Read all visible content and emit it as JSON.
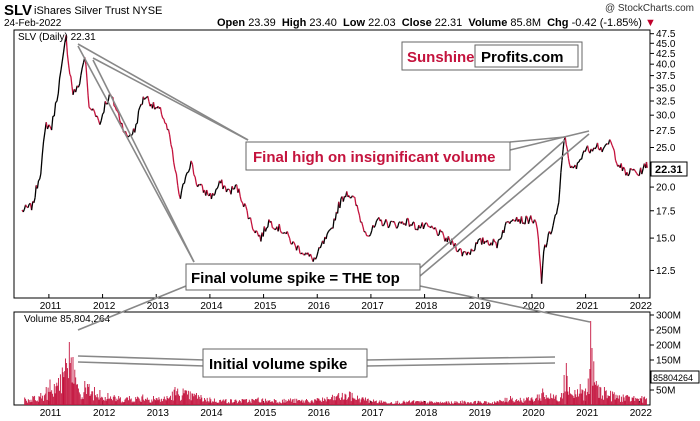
{
  "header": {
    "ticker": "SLV",
    "name": "iShares Silver Trust",
    "exchange": "NYSE",
    "date": "24-Feb-2022",
    "open_label": "Open",
    "open": "23.39",
    "high_label": "High",
    "high": "23.40",
    "low_label": "Low",
    "low": "22.03",
    "close_label": "Close",
    "close": "22.31",
    "volume_label": "Volume",
    "volume": "85.8M",
    "chg_label": "Chg",
    "chg": "-0.42 (-1.85%)",
    "chg_arrow": "▼",
    "copyright": "@ StockCharts.com"
  },
  "price_panel": {
    "legend": "SLV (Daily) 22.31",
    "last_price_tag": "22.31"
  },
  "volume_panel": {
    "legend": "Volume 85,804,264",
    "last_volume_tag": "85804264"
  },
  "brand": {
    "part1": "Sunshine",
    "part2": "Profits.com",
    "part1_color": "#c4133d"
  },
  "annotations": {
    "final_high": "Final high on insignificant volume",
    "final_spike": "Final volume spike = THE top",
    "initial_spike": "Initial volume spike"
  },
  "colors": {
    "up": "#000000",
    "down": "#c4133d",
    "volume_fill": "#c4133d",
    "accent": "#c4133d"
  },
  "chart_data": [
    {
      "type": "line",
      "title": "SLV (Daily) 22.31",
      "x_ticks": [
        "2011",
        "2012",
        "2013",
        "2014",
        "2015",
        "2016",
        "2017",
        "2018",
        "2019",
        "2020",
        "2021",
        "2022"
      ],
      "y_ticks": [
        12.5,
        15.0,
        17.5,
        20.0,
        22.5,
        25.0,
        27.5,
        30.0,
        32.5,
        35.0,
        37.5,
        40.0,
        42.5,
        45.0,
        47.5
      ],
      "ylim": [
        10.7,
        48.5
      ],
      "y_scale": "log",
      "grid": false,
      "series": [
        {
          "x": [
            2010.5,
            2010.7,
            2010.85,
            2010.95,
            2011.05,
            2011.15,
            2011.25,
            2011.32,
            2011.37,
            2011.45,
            2011.55,
            2011.62,
            2011.67,
            2011.75,
            2011.85,
            2011.95,
            2012.05,
            2012.15,
            2012.3,
            2012.45,
            2012.6,
            2012.72,
            2012.8,
            2012.95,
            2013.1,
            2013.25,
            2013.35,
            2013.45,
            2013.55,
            2013.65,
            2013.75,
            2013.9,
            2014.05,
            2014.2,
            2014.35,
            2014.5,
            2014.65,
            2014.8,
            2014.95,
            2015.1,
            2015.25,
            2015.4,
            2015.55,
            2015.7,
            2015.85,
            2015.97,
            2016.1,
            2016.25,
            2016.4,
            2016.55,
            2016.7,
            2016.85,
            2016.97,
            2017.15,
            2017.3,
            2017.5,
            2017.65,
            2017.85,
            2018.0,
            2018.2,
            2018.4,
            2018.55,
            2018.7,
            2018.85,
            2019.0,
            2019.15,
            2019.35,
            2019.5,
            2019.65,
            2019.85,
            2020.0,
            2020.1,
            2020.18,
            2020.22,
            2020.35,
            2020.5,
            2020.56,
            2020.6,
            2020.66,
            2020.72,
            2020.85,
            2020.95,
            2021.08,
            2021.2,
            2021.35,
            2021.45,
            2021.6,
            2021.75,
            2021.9,
            2022.0,
            2022.12,
            2022.15
          ],
          "values": [
            17.5,
            18.0,
            22.0,
            28.5,
            28.0,
            33.0,
            40.0,
            46.5,
            40.0,
            34.0,
            35.0,
            39.0,
            42.0,
            31.0,
            31.0,
            28.5,
            32.0,
            33.5,
            30.0,
            26.5,
            27.5,
            32.0,
            33.5,
            31.5,
            30.5,
            26.5,
            22.0,
            18.5,
            21.5,
            23.0,
            20.5,
            19.5,
            19.0,
            20.5,
            19.5,
            20.0,
            18.0,
            16.0,
            15.0,
            16.5,
            16.0,
            15.5,
            14.5,
            14.0,
            13.5,
            13.3,
            14.5,
            15.5,
            18.0,
            19.5,
            18.5,
            16.0,
            15.3,
            16.5,
            16.3,
            16.2,
            16.5,
            16.0,
            16.0,
            15.7,
            14.9,
            14.5,
            13.8,
            13.9,
            14.6,
            14.8,
            14.5,
            16.0,
            17.0,
            16.5,
            16.8,
            15.8,
            11.5,
            14.0,
            15.5,
            18.0,
            23.0,
            26.5,
            25.0,
            22.0,
            22.5,
            24.5,
            24.8,
            25.5,
            24.5,
            26.0,
            23.0,
            21.5,
            22.0,
            21.5,
            22.8,
            22.3
          ]
        }
      ]
    },
    {
      "type": "bar",
      "title": "Volume 85,804,264",
      "x_ticks": [
        "2011",
        "2012",
        "2013",
        "2014",
        "2015",
        "2016",
        "2017",
        "2018",
        "2019",
        "2020",
        "2021",
        "2022"
      ],
      "y_ticks": [
        "50M",
        "100M",
        "150M",
        "200M",
        "250M",
        "300M"
      ],
      "ylim": [
        0,
        310
      ],
      "units": "M shares",
      "grid": false,
      "series": [
        {
          "x": [
            2010.55,
            2010.7,
            2010.85,
            2010.95,
            2011.02,
            2011.1,
            2011.18,
            2011.25,
            2011.31,
            2011.33,
            2011.38,
            2011.45,
            2011.55,
            2011.67,
            2011.75,
            2011.85,
            2011.95,
            2012.1,
            2012.3,
            2012.5,
            2012.75,
            2012.95,
            2013.2,
            2013.35,
            2013.5,
            2013.75,
            2014.0,
            2014.3,
            2014.6,
            2014.9,
            2015.2,
            2015.5,
            2015.8,
            2016.1,
            2016.4,
            2016.6,
            2016.9,
            2017.2,
            2017.5,
            2017.8,
            2018.1,
            2018.4,
            2018.7,
            2019.0,
            2019.3,
            2019.6,
            2019.9,
            2020.1,
            2020.2,
            2020.4,
            2020.55,
            2020.6,
            2020.64,
            2020.7,
            2020.8,
            2020.9,
            2021.0,
            2021.08,
            2021.095,
            2021.12,
            2021.2,
            2021.35,
            2021.5,
            2021.7,
            2021.9,
            2022.05,
            2022.15
          ],
          "values": [
            25,
            30,
            40,
            60,
            85,
            70,
            90,
            125,
            155,
            140,
            210,
            160,
            55,
            80,
            70,
            60,
            50,
            40,
            30,
            30,
            35,
            30,
            30,
            60,
            55,
            40,
            25,
            20,
            20,
            25,
            20,
            22,
            20,
            25,
            40,
            45,
            25,
            15,
            14,
            16,
            14,
            12,
            15,
            14,
            12,
            30,
            25,
            35,
            55,
            35,
            40,
            100,
            140,
            60,
            50,
            70,
            55,
            120,
            280,
            190,
            80,
            60,
            45,
            35,
            30,
            30,
            35
          ]
        }
      ]
    }
  ]
}
